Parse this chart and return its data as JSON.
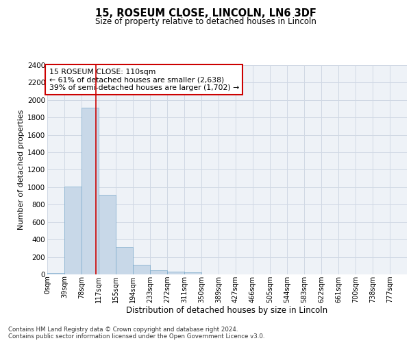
{
  "title_line1": "15, ROSEUM CLOSE, LINCOLN, LN6 3DF",
  "title_line2": "Size of property relative to detached houses in Lincoln",
  "xlabel": "Distribution of detached houses by size in Lincoln",
  "ylabel": "Number of detached properties",
  "bar_labels": [
    "0sqm",
    "39sqm",
    "78sqm",
    "117sqm",
    "155sqm",
    "194sqm",
    "233sqm",
    "272sqm",
    "311sqm",
    "350sqm",
    "389sqm",
    "427sqm",
    "466sqm",
    "505sqm",
    "544sqm",
    "583sqm",
    "622sqm",
    "661sqm",
    "700sqm",
    "738sqm",
    "777sqm"
  ],
  "bar_values": [
    15,
    1010,
    1910,
    910,
    315,
    110,
    50,
    30,
    20,
    0,
    0,
    0,
    0,
    0,
    0,
    0,
    0,
    0,
    0,
    0,
    0
  ],
  "bar_color": "#c8d8e8",
  "bar_edge_color": "#7aaacb",
  "vline_x": 2.82,
  "vline_color": "#cc0000",
  "ylim": [
    0,
    2400
  ],
  "yticks": [
    0,
    200,
    400,
    600,
    800,
    1000,
    1200,
    1400,
    1600,
    1800,
    2000,
    2200,
    2400
  ],
  "annotation_text": "15 ROSEUM CLOSE: 110sqm\n← 61% of detached houses are smaller (2,638)\n39% of semi-detached houses are larger (1,702) →",
  "annotation_box_color": "#ffffff",
  "annotation_box_edge": "#cc0000",
  "footer_text": "Contains HM Land Registry data © Crown copyright and database right 2024.\nContains public sector information licensed under the Open Government Licence v3.0.",
  "grid_color": "#d0d8e4",
  "background_color": "#eef2f7"
}
